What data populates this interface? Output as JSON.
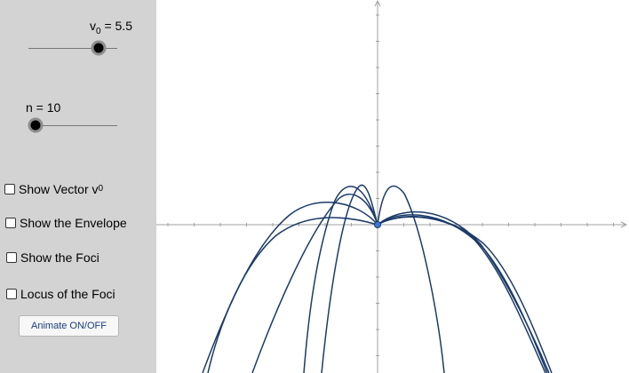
{
  "sliders": {
    "v0": {
      "label": "v",
      "sub": "0",
      "suffix": " = 5.5",
      "value": 5.5
    },
    "n": {
      "label": "n = 10",
      "value": 10
    }
  },
  "checkboxes": {
    "show_vector": {
      "label": "Show Vector v",
      "sub": "0",
      "checked": false
    },
    "show_envelope": {
      "label": "Show the Envelope",
      "checked": false
    },
    "show_foci": {
      "label": "Show the Foci",
      "checked": false
    },
    "locus_foci": {
      "label": "Locus of the Foci",
      "checked": false
    }
  },
  "buttons": {
    "animate": "Animate ON/OFF"
  },
  "colors": {
    "sidebar_bg": "#d3d3d3",
    "curve": "#1c3b6a",
    "origin_point": "#3c78d8",
    "axis": "#a0a0a0"
  }
}
